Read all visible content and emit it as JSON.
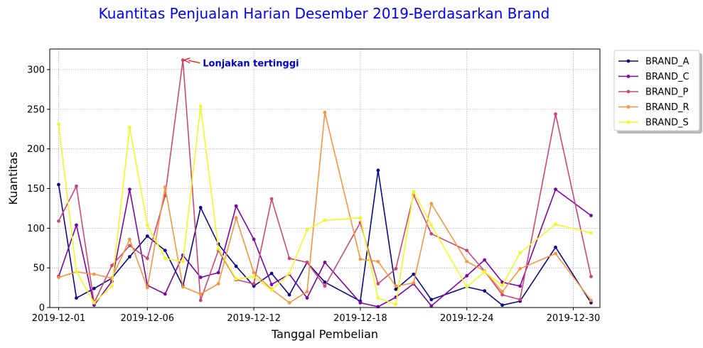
{
  "chart_data": {
    "type": "line",
    "title": "Kuantitas Penjualan Harian Desember 2019-Berdasarkan Brand",
    "title_color": "#0000ff",
    "xlabel": "Tanggal Pembelian",
    "ylabel": "Kuantitas",
    "x_dates": [
      "2019-12-01",
      "2019-12-02",
      "2019-12-03",
      "2019-12-04",
      "2019-12-05",
      "2019-12-06",
      "2019-12-07",
      "2019-12-08",
      "2019-12-09",
      "2019-12-10",
      "2019-12-11",
      "2019-12-12",
      "2019-12-13",
      "2019-12-14",
      "2019-12-15",
      "2019-12-16",
      "2019-12-17",
      "2019-12-18",
      "2019-12-19",
      "2019-12-20",
      "2019-12-21",
      "2019-12-22",
      "2019-12-23",
      "2019-12-24",
      "2019-12-25",
      "2019-12-26",
      "2019-12-27",
      "2019-12-28",
      "2019-12-29",
      "2019-12-30",
      "2019-12-31"
    ],
    "x_ticks": [
      "2019-12-01",
      "2019-12-06",
      "2019-12-12",
      "2019-12-18",
      "2019-12-24",
      "2019-12-30"
    ],
    "x_range": [
      "2019-11-30 12:00",
      "2019-12-31 12:00"
    ],
    "y_ticks": [
      0,
      50,
      100,
      150,
      200,
      250,
      300
    ],
    "ylim": [
      0,
      326
    ],
    "grid": true,
    "legend_position": "outside-top-right",
    "series": [
      {
        "name": "BRAND_A",
        "color": "#0d0887",
        "values": [
          155,
          12,
          24,
          37,
          64,
          90,
          72,
          27,
          126,
          80,
          52,
          27,
          43,
          16,
          57,
          32,
          8,
          173,
          23,
          42,
          10,
          26,
          21,
          3,
          8,
          76,
          6
        ]
      },
      {
        "name": "BRAND_C",
        "color": "#7e03a8",
        "values": [
          39,
          104,
          3,
          33,
          149,
          28,
          17,
          66,
          38,
          44,
          128,
          86,
          29,
          42,
          12,
          57,
          6,
          1,
          13,
          30,
          2,
          40,
          60,
          32,
          27,
          149,
          116
        ]
      },
      {
        "name": "BRAND_P",
        "color": "#cc4778",
        "values": [
          109,
          153,
          6,
          53,
          78,
          62,
          141,
          312,
          9,
          72,
          35,
          30,
          137,
          62,
          57,
          27,
          107,
          30,
          49,
          142,
          93,
          72,
          46,
          16,
          10,
          244,
          39
        ]
      },
      {
        "name": "BRAND_R",
        "color": "#f89540",
        "values": [
          38,
          45,
          42,
          37,
          86,
          25,
          152,
          26,
          17,
          30,
          113,
          44,
          23,
          6,
          20,
          246,
          61,
          58,
          27,
          31,
          131,
          58,
          46,
          20,
          49,
          68,
          9
        ]
      },
      {
        "name": "BRAND_S",
        "color": "#f0f921",
        "values": [
          231,
          45,
          6,
          27,
          227,
          104,
          62,
          58,
          254,
          74,
          36,
          39,
          22,
          43,
          98,
          110,
          113,
          12,
          4,
          146,
          104,
          26,
          45,
          28,
          69,
          105,
          94
        ]
      }
    ],
    "series_dates": [
      "2019-12-01",
      "2019-12-02",
      "2019-12-03",
      "2019-12-04",
      "2019-12-05",
      "2019-12-06",
      "2019-12-07",
      "2019-12-08",
      "2019-12-09",
      "2019-12-10",
      "2019-12-11",
      "2019-12-12",
      "2019-12-13",
      "2019-12-14",
      "2019-12-15",
      "2019-12-16",
      "2019-12-18",
      "2019-12-19",
      "2019-12-20",
      "2019-12-21",
      "2019-12-22",
      "2019-12-24",
      "2019-12-25",
      "2019-12-26",
      "2019-12-27",
      "2019-12-29",
      "2019-12-31"
    ],
    "annotation": {
      "text": "Lonjakan tertinggi",
      "color": "#0000cc",
      "arrow_color": "#ff0000",
      "target_date": "2019-12-08",
      "target_value": 312
    }
  }
}
